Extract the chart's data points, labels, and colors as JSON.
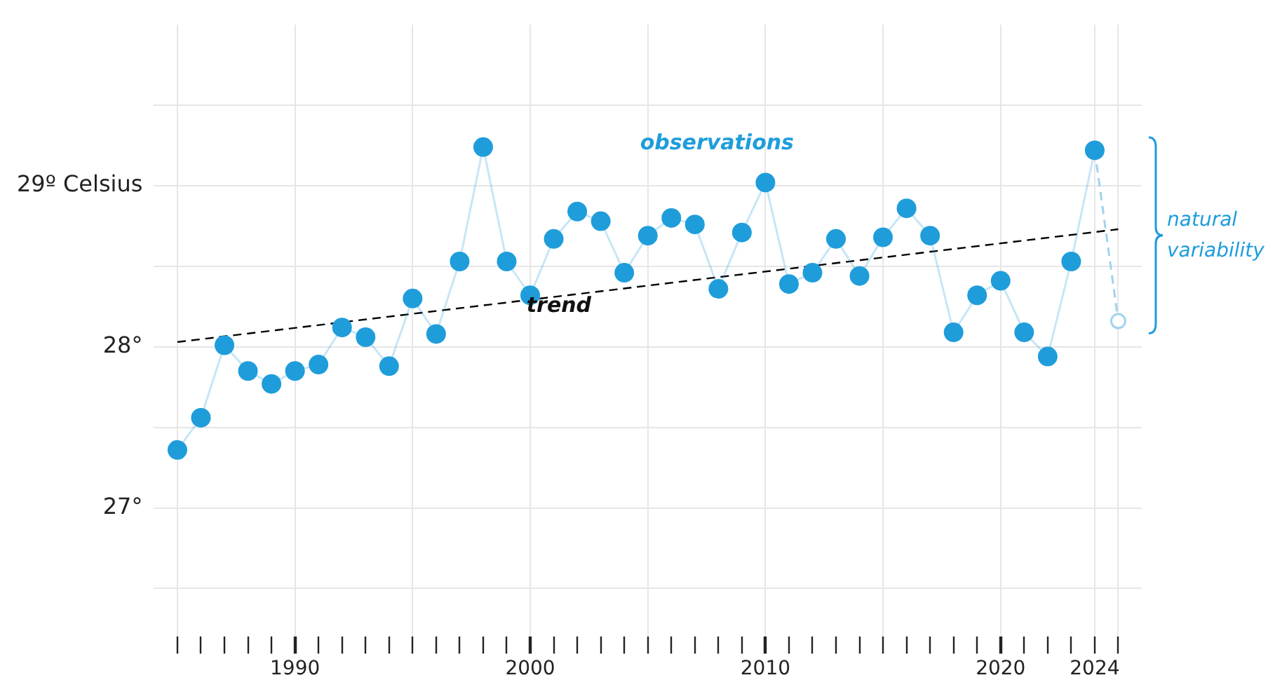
{
  "chart_data": {
    "type": "line",
    "x": [
      1985,
      1986,
      1987,
      1988,
      1989,
      1990,
      1991,
      1992,
      1993,
      1994,
      1995,
      1996,
      1997,
      1998,
      1999,
      2000,
      2001,
      2002,
      2003,
      2004,
      2005,
      2006,
      2007,
      2008,
      2009,
      2010,
      2011,
      2012,
      2013,
      2014,
      2015,
      2016,
      2017,
      2018,
      2019,
      2020,
      2021,
      2022,
      2023,
      2024
    ],
    "series": [
      {
        "color": "#1f9ddb",
        "marker": "circle",
        "values": [
          27.36,
          27.56,
          28.01,
          27.85,
          27.77,
          27.85,
          27.89,
          28.12,
          28.06,
          27.88,
          28.3,
          28.08,
          28.53,
          29.24,
          28.53,
          28.32,
          28.67,
          28.84,
          28.78,
          28.46,
          28.69,
          28.8,
          28.76,
          28.36,
          28.71,
          29.02,
          28.39,
          28.46,
          28.67,
          28.44,
          28.68,
          28.86,
          28.69,
          28.09,
          28.32,
          28.41,
          28.09,
          27.94,
          28.53,
          29.22
        ]
      },
      {
        "color": "#9fd3ef",
        "marker": "circle",
        "line_style": "dashed",
        "x": [
          2024,
          2025
        ],
        "values": [
          29.22,
          28.16
        ]
      },
      {
        "color": "#000000",
        "marker": "none",
        "line_style": "dashed",
        "x": [
          1985,
          2025
        ],
        "values": [
          28.03,
          28.73
        ]
      }
    ],
    "xlim": [
      1984,
      2026
    ],
    "xticks": [
      {
        "value": 1985,
        "label": null
      },
      {
        "value": 1986,
        "label": null
      },
      {
        "value": 1987,
        "label": null
      },
      {
        "value": 1988,
        "label": null
      },
      {
        "value": 1989,
        "label": null
      },
      1990,
      {
        "value": 1991,
        "label": null
      },
      {
        "value": 1992,
        "label": null
      },
      {
        "value": 1993,
        "label": null
      },
      {
        "value": 1994,
        "label": null
      },
      {
        "value": 1995,
        "label": null
      },
      {
        "value": 1996,
        "label": null
      },
      {
        "value": 1997,
        "label": null
      },
      {
        "value": 1998,
        "label": null
      },
      {
        "value": 1999,
        "label": null
      },
      2000,
      {
        "value": 2001,
        "label": null
      },
      {
        "value": 2002,
        "label": null
      },
      {
        "value": 2003,
        "label": null
      },
      {
        "value": 2004,
        "label": null
      },
      {
        "value": 2005,
        "label": null
      },
      {
        "value": 2006,
        "label": null
      },
      {
        "value": 2007,
        "label": null
      },
      {
        "value": 2008,
        "label": null
      },
      {
        "value": 2009,
        "label": null
      },
      2010,
      {
        "value": 2011,
        "label": null
      },
      {
        "value": 2012,
        "label": null
      },
      {
        "value": 2013,
        "label": null
      },
      {
        "value": 2014,
        "label": null
      },
      {
        "value": 2015,
        "label": null
      },
      {
        "value": 2016,
        "label": null
      },
      {
        "value": 2017,
        "label": null
      },
      {
        "value": 2018,
        "label": null
      },
      {
        "value": 2019,
        "label": null
      },
      2020,
      {
        "value": 2021,
        "label": null
      },
      {
        "value": 2022,
        "label": null
      },
      {
        "value": 2023,
        "label": null
      },
      2024,
      {
        "value": 2025,
        "label": null
      }
    ],
    "ylim": [
      26.2,
      30.0
    ],
    "yticks": [
      {
        "value": 26.5,
        "label": null
      },
      {
        "value": 27,
        "label": "27°"
      },
      {
        "value": 27.5,
        "label": null
      },
      {
        "value": 28,
        "label": "28°"
      },
      {
        "value": 28.5,
        "label": null
      },
      {
        "value": 29,
        "label": "29º Celsius"
      },
      {
        "value": 29.5,
        "label": null
      }
    ],
    "grid": true,
    "annotations": [
      "observations",
      "trend",
      "natural variability"
    ]
  }
}
